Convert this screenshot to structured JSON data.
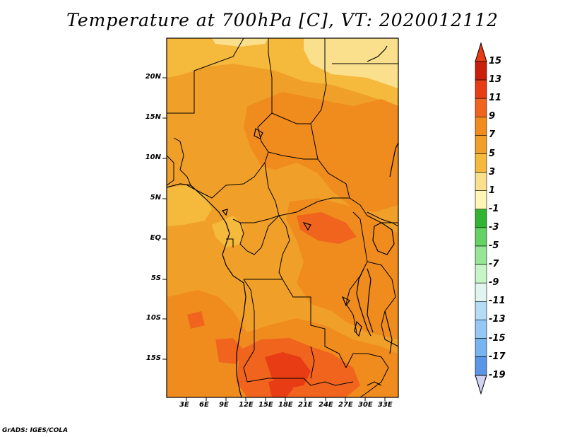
{
  "title": "Temperature at 700hPa [C], VT: 2020012112",
  "footer": "GrADS: IGES/COLA",
  "map": {
    "region": "Central Africa",
    "lon_range": [
      0,
      35
    ],
    "lat_range": [
      -20,
      25
    ],
    "lat_ticks": [
      "20N",
      "15N",
      "10N",
      "5N",
      "EQ",
      "5S",
      "10S",
      "15S"
    ],
    "lon_ticks": [
      "3E",
      "6E",
      "9E",
      "12E",
      "15E",
      "18E",
      "21E",
      "24E",
      "27E",
      "30E",
      "33E"
    ]
  },
  "colorbar": {
    "labels": [
      "15",
      "13",
      "11",
      "9",
      "7",
      "5",
      "3",
      "1",
      "-1",
      "-3",
      "-5",
      "-7",
      "-9",
      "-11",
      "-13",
      "-15",
      "-17",
      "-19"
    ],
    "colors": [
      "#c81e0a",
      "#e83c14",
      "#f0641e",
      "#f08c1e",
      "#f0a028",
      "#f5b93c",
      "#fae08c",
      "#fff5b4",
      "#32b432",
      "#64d264",
      "#96e696",
      "#c8f5c8",
      "#e1f5f0",
      "#b4dcf5",
      "#96c8f5",
      "#78b4f0",
      "#5a96e6",
      "#3c78e1",
      "#2850c8",
      "#1e3caa",
      "#14148c"
    ],
    "over_color": "#e83c14",
    "under_color": "#d2d2f5"
  },
  "fill_colors": {
    "t5": "#fae08c",
    "t7": "#f5b93c",
    "t9": "#f0a028",
    "t11": "#f08c1e",
    "t13": "#f0641e",
    "t15": "#e83c14"
  }
}
